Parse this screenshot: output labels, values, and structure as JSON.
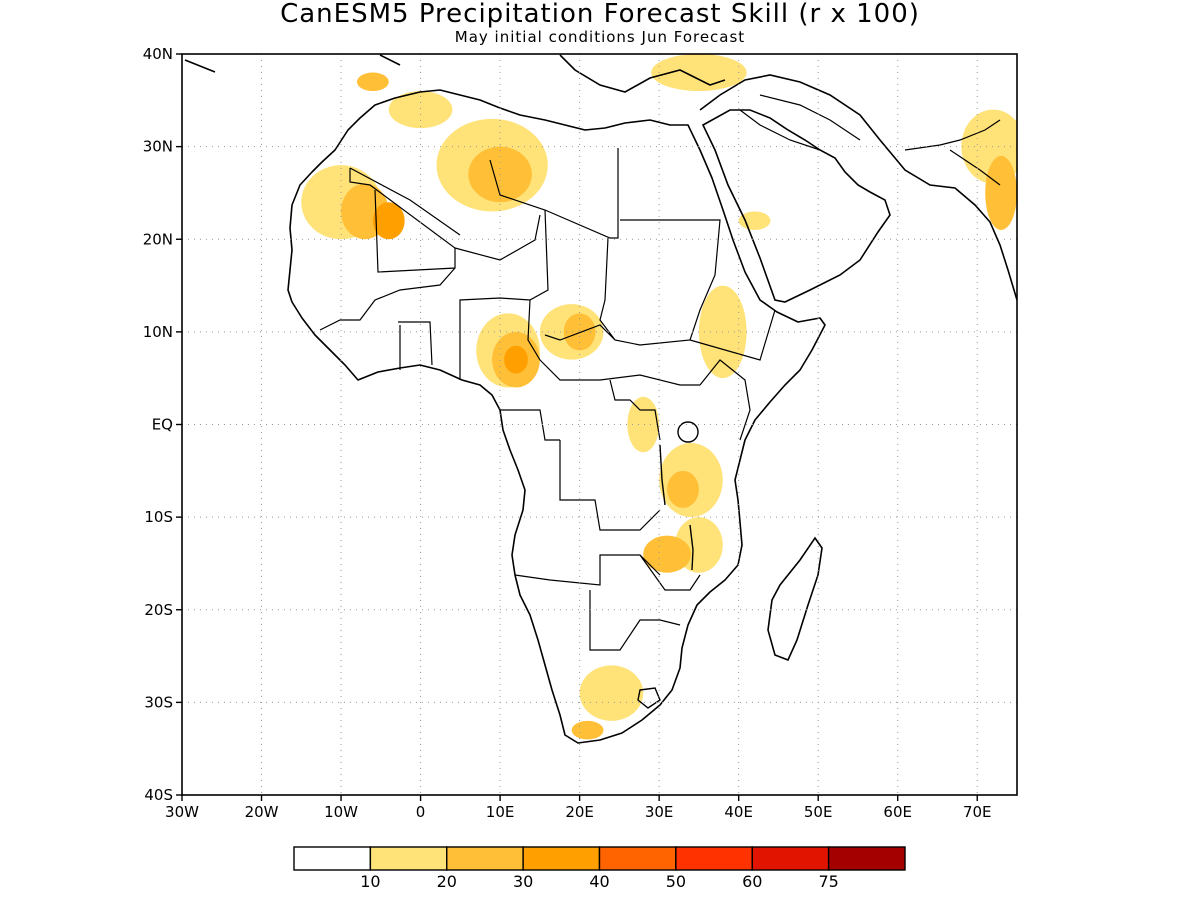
{
  "title": "CanESM5 Precipitation Forecast Skill (r x 100)",
  "subtitle": "May initial conditions  Jun Forecast",
  "map": {
    "lon_range": [
      -30,
      75
    ],
    "lat_range": [
      -40,
      40
    ],
    "lat_ticks": [
      {
        "value": 40,
        "label": "40N"
      },
      {
        "value": 30,
        "label": "30N"
      },
      {
        "value": 20,
        "label": "20N"
      },
      {
        "value": 10,
        "label": "10N"
      },
      {
        "value": 0,
        "label": "EQ"
      },
      {
        "value": -10,
        "label": "10S"
      },
      {
        "value": -20,
        "label": "20S"
      },
      {
        "value": -30,
        "label": "30S"
      },
      {
        "value": -40,
        "label": "40S"
      }
    ],
    "lon_ticks": [
      {
        "value": -30,
        "label": "30W"
      },
      {
        "value": -20,
        "label": "20W"
      },
      {
        "value": -10,
        "label": "10W"
      },
      {
        "value": 0,
        "label": "0"
      },
      {
        "value": 10,
        "label": "10E"
      },
      {
        "value": 20,
        "label": "20E"
      },
      {
        "value": 30,
        "label": "30E"
      },
      {
        "value": 40,
        "label": "40E"
      },
      {
        "value": 50,
        "label": "50E"
      },
      {
        "value": 60,
        "label": "60E"
      },
      {
        "value": 70,
        "label": "70E"
      }
    ],
    "grid": "dotted"
  },
  "colorbar": {
    "colors": [
      "#ffffff",
      "#ffe278",
      "#ffbf37",
      "#ffa000",
      "#ff6400",
      "#ff3200",
      "#e11400",
      "#a50000"
    ],
    "labels": [
      "10",
      "20",
      "30",
      "40",
      "50",
      "60",
      "75"
    ]
  },
  "skill_regions": [
    {
      "name": "nw-sahara",
      "levels": [
        [
          -10,
          24,
          5,
          4
        ],
        [
          -7,
          23,
          3,
          3
        ],
        [
          -4,
          22,
          2,
          2
        ]
      ]
    },
    {
      "name": "libya",
      "levels": [
        [
          9,
          28,
          7,
          5
        ],
        [
          10,
          27,
          4,
          3
        ]
      ]
    },
    {
      "name": "north-africa-coast",
      "levels": [
        [
          0,
          34,
          4,
          2
        ],
        [
          -6,
          37,
          2,
          1
        ]
      ]
    },
    {
      "name": "nigeria-cameroon",
      "levels": [
        [
          11,
          8,
          4,
          4
        ],
        [
          12,
          7,
          3,
          3
        ],
        [
          12,
          7,
          1.5,
          1.5
        ]
      ]
    },
    {
      "name": "chad-car",
      "levels": [
        [
          19,
          10,
          4,
          3
        ],
        [
          20,
          10,
          2,
          2
        ]
      ]
    },
    {
      "name": "ethiopia",
      "levels": [
        [
          38,
          10,
          3,
          5
        ]
      ]
    },
    {
      "name": "tanzania",
      "levels": [
        [
          34,
          -6,
          4,
          4
        ],
        [
          33,
          -7,
          2,
          2
        ]
      ]
    },
    {
      "name": "malawi-mozambique",
      "levels": [
        [
          35,
          -13,
          3,
          3
        ],
        [
          31,
          -14,
          3,
          2
        ]
      ]
    },
    {
      "name": "congo",
      "levels": [
        [
          28,
          0,
          2,
          3
        ]
      ]
    },
    {
      "name": "south-africa",
      "levels": [
        [
          24,
          -29,
          4,
          3
        ],
        [
          21,
          -33,
          2,
          1
        ]
      ]
    },
    {
      "name": "india-pakistan",
      "levels": [
        [
          72,
          30,
          4,
          4
        ],
        [
          73,
          25,
          2,
          4
        ]
      ]
    },
    {
      "name": "eastern-mediterranean",
      "levels": [
        [
          35,
          38,
          6,
          2
        ]
      ]
    },
    {
      "name": "arabia",
      "levels": [
        [
          42,
          22,
          2,
          1
        ]
      ]
    }
  ]
}
